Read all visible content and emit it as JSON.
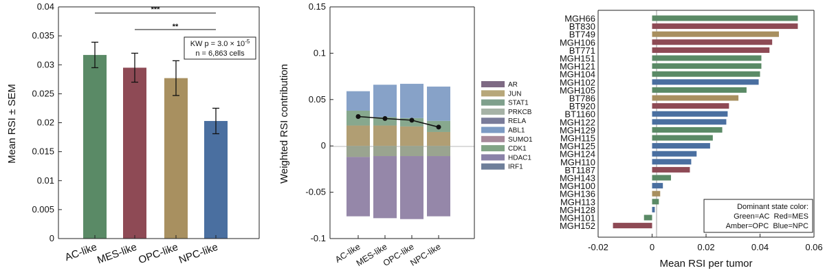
{
  "chart_data": [
    {
      "type": "bar",
      "categories": [
        "AC-like",
        "MES-like",
        "OPC-like",
        "NPC-like"
      ],
      "values": [
        0.0317,
        0.0295,
        0.0277,
        0.0203
      ],
      "errors": [
        0.0022,
        0.0025,
        0.003,
        0.0022
      ],
      "colors": [
        "#5a8a66",
        "#8e4a55",
        "#a89060",
        "#4a6fa0"
      ],
      "ylabel": "Mean RSI ± SEM",
      "ylim": [
        0,
        0.04
      ],
      "yticks": [
        "0",
        "0.005",
        "0.01",
        "0.015",
        "0.02",
        "0.025",
        "0.03",
        "0.035",
        "0.04"
      ],
      "significance": [
        {
          "from": "AC-like",
          "to": "NPC-like",
          "label": "***"
        },
        {
          "from": "MES-like",
          "to": "NPC-like",
          "label": "**"
        }
      ],
      "annotation": {
        "line1_pre": "KW p = 3.0 × 10",
        "line1_sup": "-5",
        "line2": "n = 6,863 cells"
      }
    },
    {
      "type": "bar",
      "stacked": true,
      "categories": [
        "AC-like",
        "MES-like",
        "OPC-like",
        "NPC-like"
      ],
      "ylabel": "Weighted RSI contribution",
      "ylim": [
        -0.1,
        0.15
      ],
      "yticks": [
        "-0.1",
        "-0.05",
        "0",
        "0.05",
        "0.1",
        "0.15"
      ],
      "legend": [
        {
          "name": "AR",
          "color": "#7e6a84"
        },
        {
          "name": "JUN",
          "color": "#b7a77a"
        },
        {
          "name": "STAT1",
          "color": "#7fa08c"
        },
        {
          "name": "PRKCB",
          "color": "#a6b2a6"
        },
        {
          "name": "RELA",
          "color": "#7a7c9a"
        },
        {
          "name": "ABL1",
          "color": "#7d9bc4"
        },
        {
          "name": "SUMO1",
          "color": "#a7899a"
        },
        {
          "name": "CDK1",
          "color": "#82a486"
        },
        {
          "name": "HDAC1",
          "color": "#8a82a8"
        },
        {
          "name": "IRF1",
          "color": "#6e7f9a"
        }
      ],
      "positive_segments": [
        {
          "color": "#a89464",
          "values": [
            0.022,
            0.022,
            0.021,
            0.015
          ]
        },
        {
          "color": "#7a9e82",
          "values": [
            0.038,
            0.031,
            0.03,
            0.027
          ]
        },
        {
          "color": "#7a98c2",
          "values": [
            0.059,
            0.066,
            0.067,
            0.064
          ]
        }
      ],
      "negative_segments": [
        {
          "color": "#8f9a84",
          "values": [
            -0.012,
            -0.011,
            -0.011,
            -0.011
          ]
        },
        {
          "color": "#8a7aa0",
          "values": [
            -0.076,
            -0.078,
            -0.079,
            -0.076
          ]
        }
      ],
      "net_line": [
        0.0317,
        0.0295,
        0.0277,
        0.0203
      ]
    },
    {
      "type": "bar",
      "orientation": "horizontal",
      "categories": [
        "MGH66",
        "BT830",
        "BT749",
        "MGH106",
        "BT771",
        "MGH151",
        "MGH121",
        "MGH104",
        "MGH102",
        "MGH105",
        "BT786",
        "BT920",
        "BT1160",
        "MGH122",
        "MGH129",
        "MGH115",
        "MGH125",
        "MGH124",
        "MGH110",
        "BT1187",
        "MGH143",
        "MGH100",
        "MGH136",
        "MGH113",
        "MGH128",
        "MGH101",
        "MGH152"
      ],
      "values": [
        0.054,
        0.054,
        0.047,
        0.0445,
        0.0435,
        0.0405,
        0.0405,
        0.04,
        0.0395,
        0.035,
        0.032,
        0.0285,
        0.028,
        0.0275,
        0.026,
        0.0225,
        0.0215,
        0.0165,
        0.0145,
        0.014,
        0.007,
        0.004,
        0.003,
        0.0025,
        0.001,
        -0.003,
        -0.0145
      ],
      "colors": [
        "#5a8a66",
        "#8e4a55",
        "#a89060",
        "#8e4a55",
        "#8e4a55",
        "#5a8a66",
        "#5a8a66",
        "#5a8a66",
        "#4a6fa0",
        "#5a8a66",
        "#a89060",
        "#8e4a55",
        "#4a6fa0",
        "#4a6fa0",
        "#5a8a66",
        "#5a8a66",
        "#4a6fa0",
        "#4a6fa0",
        "#4a6fa0",
        "#8e4a55",
        "#5a8a66",
        "#4a6fa0",
        "#a89060",
        "#5a8a66",
        "#4a6fa0",
        "#5a8a66",
        "#8e4a55"
      ],
      "xlabel": "Mean RSI per tumor",
      "xlim": [
        -0.02,
        0.06
      ],
      "xticks": [
        "-0.02",
        "0",
        "0.02",
        "0.04",
        "0.06"
      ],
      "legend_box": {
        "line1": "Dominant state color:",
        "line2": "Green=AC  Red=MES",
        "line3": "Amber=OPC  Blue=NPC"
      }
    }
  ]
}
